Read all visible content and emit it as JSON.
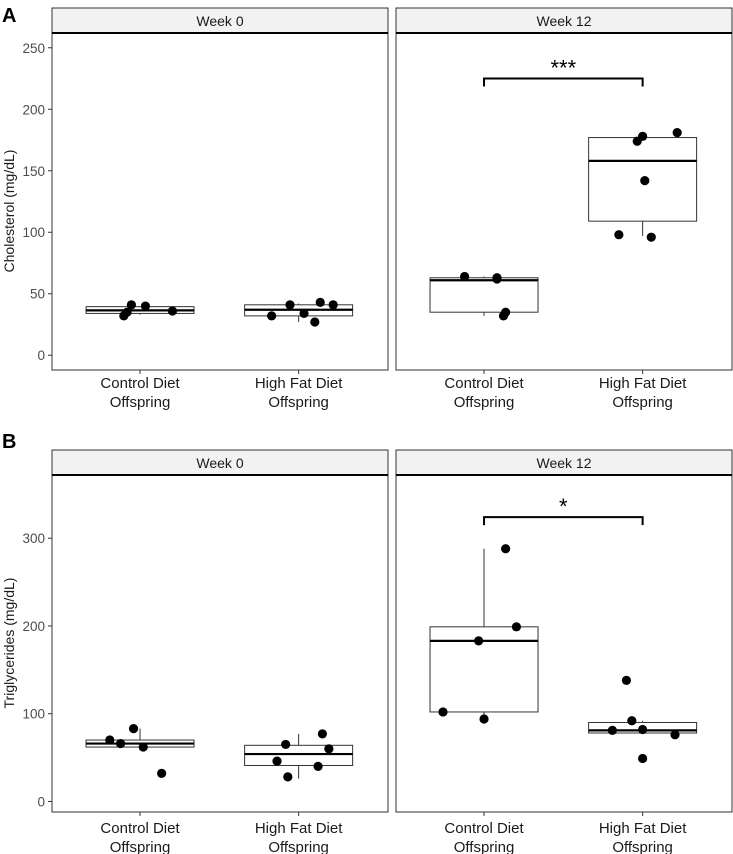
{
  "chart_data": [
    {
      "type": "boxplot",
      "panel_label": "A",
      "ylabel": "Cholesterol (mg/dL)",
      "ylim": [
        -12,
        262
      ],
      "yticks": [
        0,
        50,
        100,
        150,
        200,
        250
      ],
      "categories": [
        [
          "Control Diet",
          "Offspring"
        ],
        [
          "High Fat Diet",
          "Offspring"
        ]
      ],
      "facets": [
        {
          "title": "Week 0",
          "groups": [
            {
              "box": {
                "q1": 34,
                "median": 36.5,
                "q3": 39.5,
                "wlo": 33,
                "whi": 40
              },
              "points": [
                [
                  -0.15,
                  32
                ],
                [
                  -0.12,
                  35
                ],
                [
                  -0.08,
                  41
                ],
                [
                  0.05,
                  40
                ],
                [
                  0.3,
                  36
                ]
              ]
            },
            {
              "box": {
                "q1": 32,
                "median": 37,
                "q3": 41,
                "wlo": 27,
                "whi": 42
              },
              "points": [
                [
                  -0.25,
                  32
                ],
                [
                  -0.08,
                  41
                ],
                [
                  0.05,
                  34
                ],
                [
                  0.15,
                  27
                ],
                [
                  0.2,
                  43
                ],
                [
                  0.32,
                  41
                ]
              ]
            }
          ],
          "significance": null
        },
        {
          "title": "Week 12",
          "groups": [
            {
              "box": {
                "q1": 35,
                "median": 61,
                "q3": 63,
                "wlo": 32,
                "whi": 64
              },
              "points": [
                [
                  -0.18,
                  64
                ],
                [
                  0.12,
                  63
                ],
                [
                  0.12,
                  62
                ],
                [
                  0.18,
                  32
                ],
                [
                  0.2,
                  35
                ]
              ]
            },
            {
              "box": {
                "q1": 109,
                "median": 158,
                "q3": 177,
                "wlo": 97,
                "whi": 181
              },
              "points": [
                [
                  -0.22,
                  98
                ],
                [
                  -0.05,
                  174
                ],
                [
                  0.0,
                  178
                ],
                [
                  0.02,
                  142
                ],
                [
                  0.08,
                  96
                ],
                [
                  0.32,
                  181
                ]
              ]
            }
          ],
          "significance": {
            "label": "***",
            "y": 225
          }
        }
      ]
    },
    {
      "type": "boxplot",
      "panel_label": "B",
      "ylabel": "Triglycerides (mg/dL)",
      "ylim": [
        -12,
        372
      ],
      "yticks": [
        0,
        100,
        200,
        300
      ],
      "categories": [
        [
          "Control Diet",
          "Offspring"
        ],
        [
          "High Fat Diet",
          "Offspring"
        ]
      ],
      "facets": [
        {
          "title": "Week 0",
          "groups": [
            {
              "box": {
                "q1": 62,
                "median": 66,
                "q3": 70,
                "wlo": 58,
                "whi": 83
              },
              "points": [
                [
                  -0.28,
                  70
                ],
                [
                  -0.18,
                  66
                ],
                [
                  -0.06,
                  83
                ],
                [
                  0.03,
                  62
                ],
                [
                  0.2,
                  32
                ]
              ]
            },
            {
              "box": {
                "q1": 41,
                "median": 54,
                "q3": 64,
                "wlo": 26,
                "whi": 77
              },
              "points": [
                [
                  -0.2,
                  46
                ],
                [
                  -0.12,
                  65
                ],
                [
                  -0.1,
                  28
                ],
                [
                  0.18,
                  40
                ],
                [
                  0.22,
                  77
                ],
                [
                  0.28,
                  60
                ]
              ]
            }
          ],
          "significance": null
        },
        {
          "title": "Week 12",
          "groups": [
            {
              "box": {
                "q1": 102,
                "median": 183,
                "q3": 199,
                "wlo": 93,
                "whi": 288
              },
              "points": [
                [
                  -0.38,
                  102
                ],
                [
                  -0.05,
                  183
                ],
                [
                  0.0,
                  94
                ],
                [
                  0.2,
                  288
                ],
                [
                  0.3,
                  199
                ]
              ]
            },
            {
              "box": {
                "q1": 78,
                "median": 81,
                "q3": 90,
                "wlo": 77,
                "whi": 92
              },
              "points": [
                [
                  -0.28,
                  81
                ],
                [
                  -0.15,
                  138
                ],
                [
                  -0.1,
                  92
                ],
                [
                  0.0,
                  49
                ],
                [
                  0.0,
                  82
                ],
                [
                  0.3,
                  76
                ]
              ]
            }
          ],
          "significance": {
            "label": "*",
            "y": 324
          }
        }
      ]
    }
  ]
}
